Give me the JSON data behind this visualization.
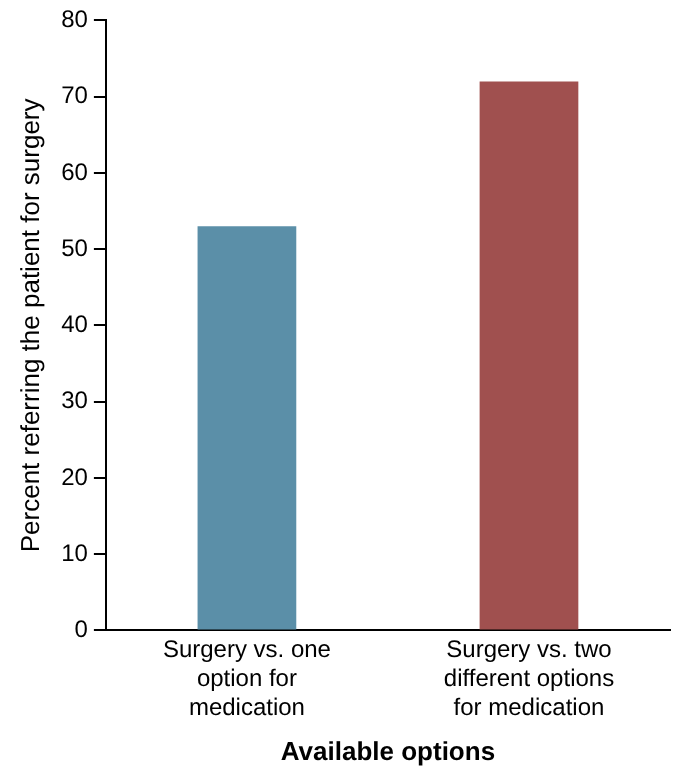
{
  "chart_data": {
    "type": "bar",
    "xlabel": "Available options",
    "ylabel": "Percent referring the patient for surgery",
    "categories": [
      "Surgery vs. one option for medication",
      "Surgery vs. two different options for medication"
    ],
    "values": [
      53,
      72
    ],
    "colors": [
      "#5b8fa8",
      "#a0504f"
    ],
    "ylim": [
      0,
      80
    ],
    "yticks": [
      0,
      10,
      20,
      30,
      40,
      50,
      60,
      70,
      80
    ],
    "grid": false,
    "legend": false
  }
}
